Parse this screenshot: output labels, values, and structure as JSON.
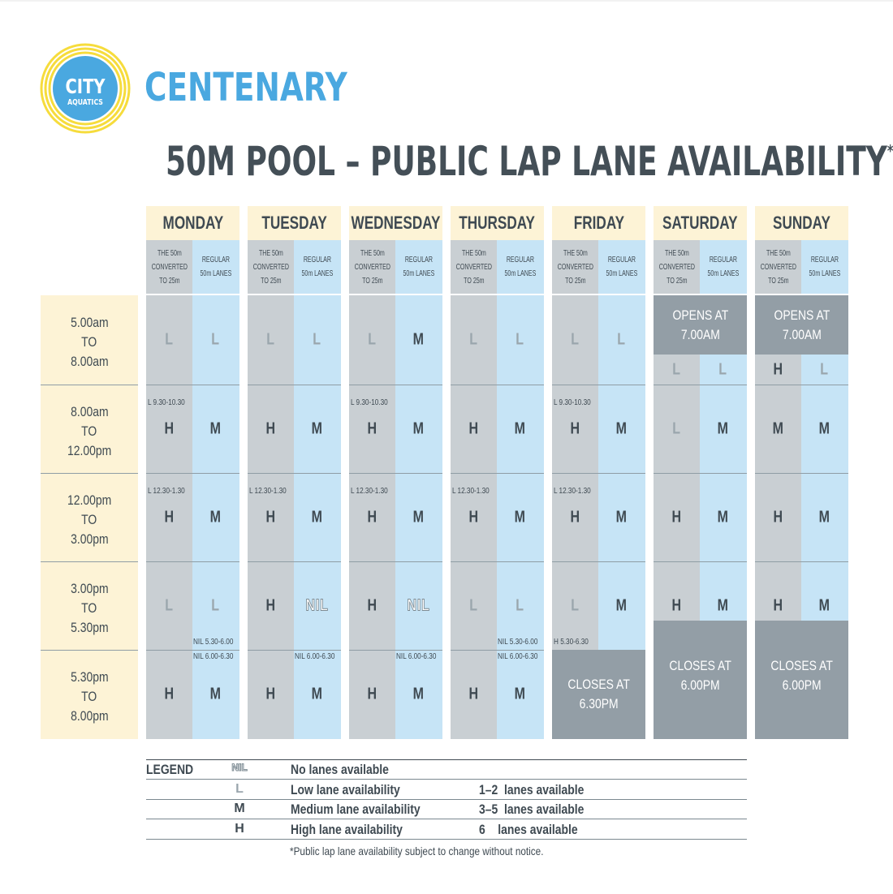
{
  "brand": {
    "logo_top": "CITY",
    "logo_bottom": "AQUATICS",
    "name": "CENTENARY",
    "colors": {
      "logo_ring": "#f6dc3c",
      "logo_disc": "#4aa8e0",
      "name": "#4aa8e0"
    }
  },
  "title": {
    "text": "50M POOL – PUBLIC LAP LANE AVAILABILITY",
    "asterisk": "*"
  },
  "subheads": {
    "converted": [
      "THE 50m",
      "CONVERTED",
      "TO 25m"
    ],
    "regular": [
      "REGULAR",
      "50m LANES"
    ]
  },
  "times": [
    [
      "5.00am",
      "TO",
      "8.00am"
    ],
    [
      "8.00am",
      "TO",
      "12.00pm"
    ],
    [
      "12.00pm",
      "TO",
      "3.00pm"
    ],
    [
      "3.00pm",
      "TO",
      "5.30pm"
    ],
    [
      "5.30pm",
      "TO",
      "8.00pm"
    ]
  ],
  "days": [
    {
      "name": "MONDAY",
      "cells": [
        [
          "L",
          "L"
        ],
        [
          "H",
          "M"
        ],
        [
          "H",
          "M"
        ],
        [
          "L",
          "L"
        ],
        [
          "H",
          "M"
        ]
      ],
      "notes": [
        {
          "slot": 1,
          "side": "l",
          "pos": "top",
          "text": "L 9.30-10.30"
        },
        {
          "slot": 2,
          "side": "l",
          "pos": "top",
          "text": "L 12.30-1.30"
        },
        {
          "slot": 3,
          "side": "r",
          "pos": "bottom",
          "text": "NIL 5.30-6.00"
        },
        {
          "slot": 4,
          "side": "r",
          "pos": "top",
          "text": "NIL 6.00-6.30"
        }
      ]
    },
    {
      "name": "TUESDAY",
      "cells": [
        [
          "L",
          "L"
        ],
        [
          "H",
          "M"
        ],
        [
          "H",
          "M"
        ],
        [
          "H",
          "NIL"
        ],
        [
          "H",
          "M"
        ]
      ],
      "notes": [
        {
          "slot": 2,
          "side": "l",
          "pos": "top",
          "text": "L 12.30-1.30"
        },
        {
          "slot": 4,
          "side": "r",
          "pos": "top",
          "text": "NIL 6.00-6.30"
        }
      ]
    },
    {
      "name": "WEDNESDAY",
      "cells": [
        [
          "L",
          "M"
        ],
        [
          "H",
          "M"
        ],
        [
          "H",
          "M"
        ],
        [
          "H",
          "NIL"
        ],
        [
          "H",
          "M"
        ]
      ],
      "notes": [
        {
          "slot": 1,
          "side": "l",
          "pos": "top",
          "text": "L 9.30-10.30"
        },
        {
          "slot": 2,
          "side": "l",
          "pos": "top",
          "text": "L 12.30-1.30"
        },
        {
          "slot": 4,
          "side": "r",
          "pos": "top",
          "text": "NIL 6.00-6.30"
        }
      ]
    },
    {
      "name": "THURSDAY",
      "cells": [
        [
          "L",
          "L"
        ],
        [
          "H",
          "M"
        ],
        [
          "H",
          "M"
        ],
        [
          "L",
          "L"
        ],
        [
          "H",
          "M"
        ]
      ],
      "notes": [
        {
          "slot": 2,
          "side": "l",
          "pos": "top",
          "text": "L 12.30-1.30"
        },
        {
          "slot": 3,
          "side": "r",
          "pos": "bottom",
          "text": "NIL 5.30-6.00"
        },
        {
          "slot": 4,
          "side": "r",
          "pos": "top",
          "text": "NIL 6.00-6.30"
        }
      ]
    },
    {
      "name": "FRIDAY",
      "cells": [
        [
          "L",
          "L"
        ],
        [
          "H",
          "M"
        ],
        [
          "H",
          "M"
        ],
        [
          "L",
          "M"
        ],
        [
          null,
          null
        ]
      ],
      "notes": [
        {
          "slot": 1,
          "side": "l",
          "pos": "top",
          "text": "L 9.30-10.30"
        },
        {
          "slot": 2,
          "side": "l",
          "pos": "top",
          "text": "L 12.30-1.30"
        },
        {
          "slot": 3,
          "side": "l",
          "pos": "bottom",
          "text": "H 5.30-6.30"
        }
      ],
      "closes": "CLOSES AT\n6.30PM"
    },
    {
      "name": "SATURDAY",
      "opens": "OPENS AT\n7.00AM",
      "first_slot_after_open": [
        "L",
        "L"
      ],
      "cells": [
        [
          null,
          null
        ],
        [
          "L",
          "M"
        ],
        [
          "H",
          "M"
        ],
        [
          "H",
          "M"
        ],
        [
          null,
          null
        ]
      ],
      "notes": [],
      "closes": "CLOSES AT\n6.00PM"
    },
    {
      "name": "SUNDAY",
      "opens": "OPENS AT\n7.00AM",
      "first_slot_after_open": [
        "H",
        "L"
      ],
      "cells": [
        [
          null,
          null
        ],
        [
          "M",
          "M"
        ],
        [
          "H",
          "M"
        ],
        [
          "H",
          "M"
        ],
        [
          null,
          null
        ]
      ],
      "notes": [],
      "closes": "CLOSES AT\n6.00PM"
    }
  ],
  "legend": {
    "title": "LEGEND",
    "rows": [
      {
        "symbol": "NIL",
        "desc": "No lanes available",
        "count": ""
      },
      {
        "symbol": "L",
        "desc": "Low lane availability",
        "count": "1–2  lanes available"
      },
      {
        "symbol": "M",
        "desc": "Medium lane availability",
        "count": "3–5  lanes available"
      },
      {
        "symbol": "H",
        "desc": "High lane availability",
        "count": "6    lanes available"
      }
    ]
  },
  "footnote": "*Public lap lane availability subject to change without notice."
}
